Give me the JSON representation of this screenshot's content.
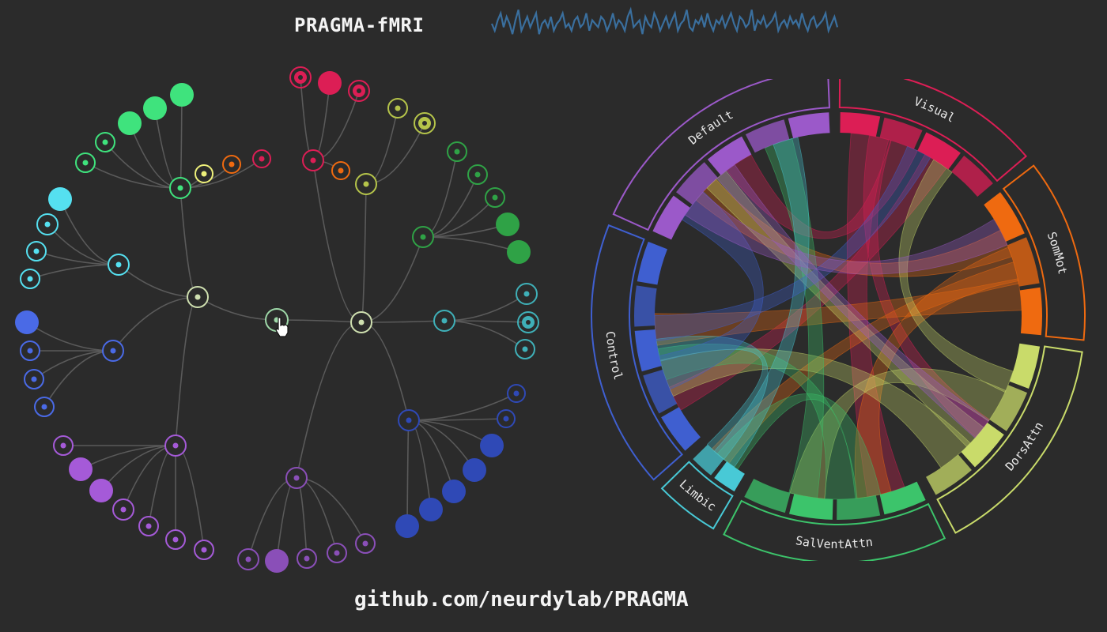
{
  "app": {
    "title": "PRAGMA-fMRI"
  },
  "footer": {
    "link_text": "github.com/neurdylab/PRAGMA"
  },
  "signal": {
    "color": "#3a6f9e",
    "values": [
      0.5,
      0.3,
      0.6,
      0.8,
      0.4,
      0.7,
      0.5,
      0.2,
      0.6,
      0.9,
      0.3,
      0.5,
      0.7,
      0.4,
      0.6,
      0.8,
      0.2,
      0.5,
      0.6,
      0.4,
      0.7,
      0.3,
      0.5,
      0.6,
      0.8,
      0.4,
      0.5,
      0.3,
      0.6,
      0.7,
      0.4,
      0.5,
      0.8,
      0.3,
      0.6,
      0.5,
      0.4,
      0.7,
      0.6,
      0.3,
      0.5,
      0.8,
      0.4,
      0.6,
      0.5,
      0.3,
      0.7,
      0.9,
      0.4,
      0.5,
      0.6,
      0.2,
      0.7,
      0.5,
      0.4,
      0.8,
      0.6,
      0.3,
      0.5,
      0.7,
      0.4,
      0.6,
      0.8,
      0.3,
      0.5,
      0.6,
      0.9,
      0.4,
      0.3,
      0.6,
      0.5,
      0.7,
      0.4,
      0.8,
      0.5,
      0.3,
      0.6,
      0.5,
      0.7,
      0.4,
      0.6,
      0.8,
      0.5,
      0.3,
      0.7,
      0.6,
      0.4,
      0.5,
      0.9,
      0.3,
      0.6,
      0.5,
      0.7,
      0.4,
      0.5,
      0.6,
      0.8,
      0.3,
      0.5,
      0.6,
      0.4,
      0.7,
      0.5,
      0.6,
      0.4,
      0.8,
      0.5,
      0.3,
      0.6,
      0.7,
      0.4,
      0.5,
      0.6,
      0.8,
      0.3,
      0.5,
      0.7,
      0.4
    ]
  },
  "network_colors": {
    "Visual": "#dc1e55",
    "SomMot": "#ef6a10",
    "DorsAttn": "#eef07a",
    "SalVentAttn": "#3fe37d",
    "Limbic": "#55e0f0",
    "Control": "#4a6ae6",
    "Default": "#a55ad8"
  },
  "chord": {
    "networks": [
      {
        "label": "Visual",
        "color": "#dc1e55"
      },
      {
        "label": "SomMot",
        "color": "#ef6a10"
      },
      {
        "label": "DorsAttn",
        "color": "#c9db6a"
      },
      {
        "label": "SalVentAttn",
        "color": "#3cc46b"
      },
      {
        "label": "Limbic",
        "color": "#48c9d6"
      },
      {
        "label": "Control",
        "color": "#3f5fd0"
      },
      {
        "label": "Default",
        "color": "#9b59c9"
      }
    ],
    "links": [
      [
        "Visual",
        "SalVentAttn",
        0.8
      ],
      [
        "Visual",
        "Default",
        0.5
      ],
      [
        "Visual",
        "Control",
        0.4
      ],
      [
        "Visual",
        "DorsAttn",
        0.3
      ],
      [
        "SomMot",
        "SalVentAttn",
        0.7
      ],
      [
        "SomMot",
        "Control",
        0.6
      ],
      [
        "SomMot",
        "Default",
        0.5
      ],
      [
        "SomMot",
        "Limbic",
        0.3
      ],
      [
        "DorsAttn",
        "Control",
        0.8
      ],
      [
        "DorsAttn",
        "SalVentAttn",
        0.7
      ],
      [
        "DorsAttn",
        "Default",
        0.4
      ],
      [
        "DorsAttn",
        "Visual",
        0.3
      ],
      [
        "SalVentAttn",
        "Control",
        0.6
      ],
      [
        "SalVentAttn",
        "Default",
        0.5
      ],
      [
        "SalVentAttn",
        "Limbic",
        0.4
      ],
      [
        "Limbic",
        "Default",
        0.4
      ],
      [
        "Limbic",
        "Control",
        0.3
      ],
      [
        "Control",
        "Default",
        0.7
      ],
      [
        "Control",
        "Visual",
        0.4
      ],
      [
        "Default",
        "SomMot",
        0.5
      ],
      [
        "Default",
        "DorsAttn",
        0.3
      ]
    ]
  }
}
